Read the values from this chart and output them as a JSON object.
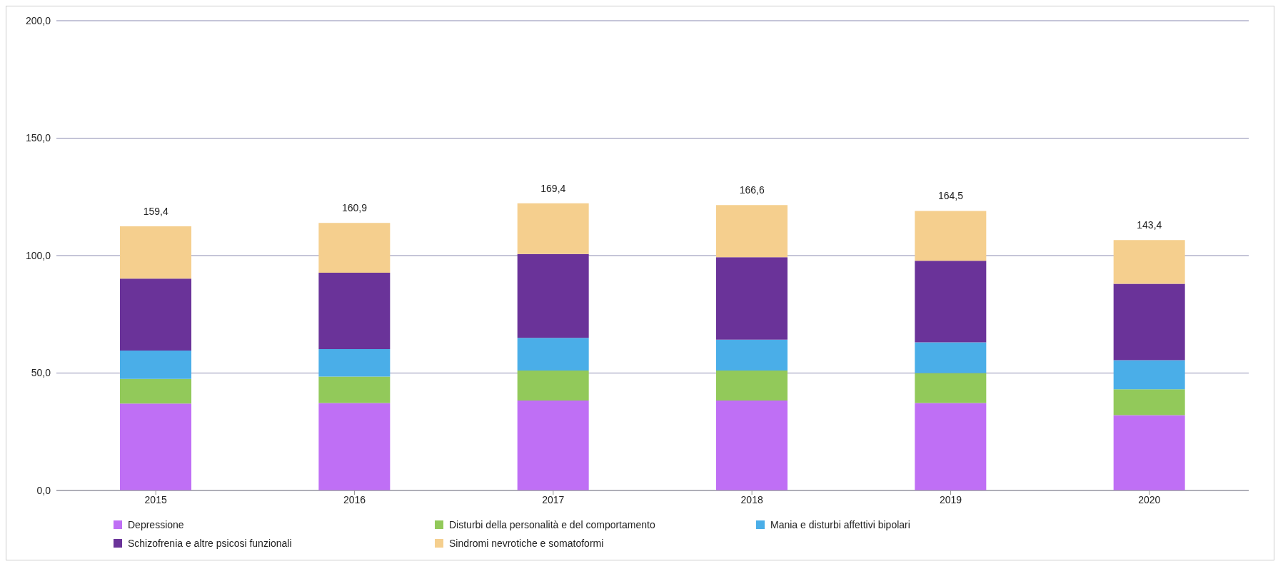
{
  "chart_data": {
    "type": "bar",
    "stacked": true,
    "categories": [
      "2015",
      "2016",
      "2017",
      "2018",
      "2019",
      "2020"
    ],
    "series": [
      {
        "name": "Depressione",
        "color": "#bf6ff5",
        "values": [
          37.0,
          37.2,
          38.3,
          38.3,
          37.2,
          32.1
        ]
      },
      {
        "name": "Disturbi della personalità e del comportamento",
        "color": "#92c95a",
        "values": [
          10.5,
          11.3,
          12.8,
          12.8,
          12.8,
          11.0
        ]
      },
      {
        "name": "Mania e disturbi affettivi bipolari",
        "color": "#4aaee8",
        "values": [
          12.1,
          11.7,
          13.9,
          13.1,
          13.1,
          12.4
        ]
      },
      {
        "name": "Schizofrenia e altre psicosi funzionali",
        "color": "#6a3399",
        "values": [
          30.6,
          32.5,
          35.7,
          35.1,
          34.7,
          32.5
        ]
      },
      {
        "name": "Sindromi nevrotiche e somatoformi",
        "color": "#f5cf8e",
        "values": [
          22.3,
          21.2,
          21.6,
          22.2,
          21.2,
          18.6
        ]
      }
    ],
    "annotations": [
      {
        "text": "159,4",
        "x": "2015",
        "y": 112.5
      },
      {
        "text": "160,9",
        "x": "2016",
        "y": 113.9
      },
      {
        "text": "169,4",
        "x": "2017",
        "y": 122.3
      },
      {
        "text": "166,6",
        "x": "2018",
        "y": 121.5
      },
      {
        "text": "164,5",
        "x": "2019",
        "y": 119.0
      },
      {
        "text": "143,4",
        "x": "2020",
        "y": 106.6
      }
    ],
    "ylim": [
      0,
      200
    ],
    "yticks": [
      {
        "value": 0,
        "label": "0,0"
      },
      {
        "value": 50,
        "label": "50,0"
      },
      {
        "value": 100,
        "label": "100,0"
      },
      {
        "value": 150,
        "label": "150,0"
      },
      {
        "value": 200,
        "label": "200,0"
      }
    ],
    "grid": "y",
    "legend": "bottom"
  }
}
